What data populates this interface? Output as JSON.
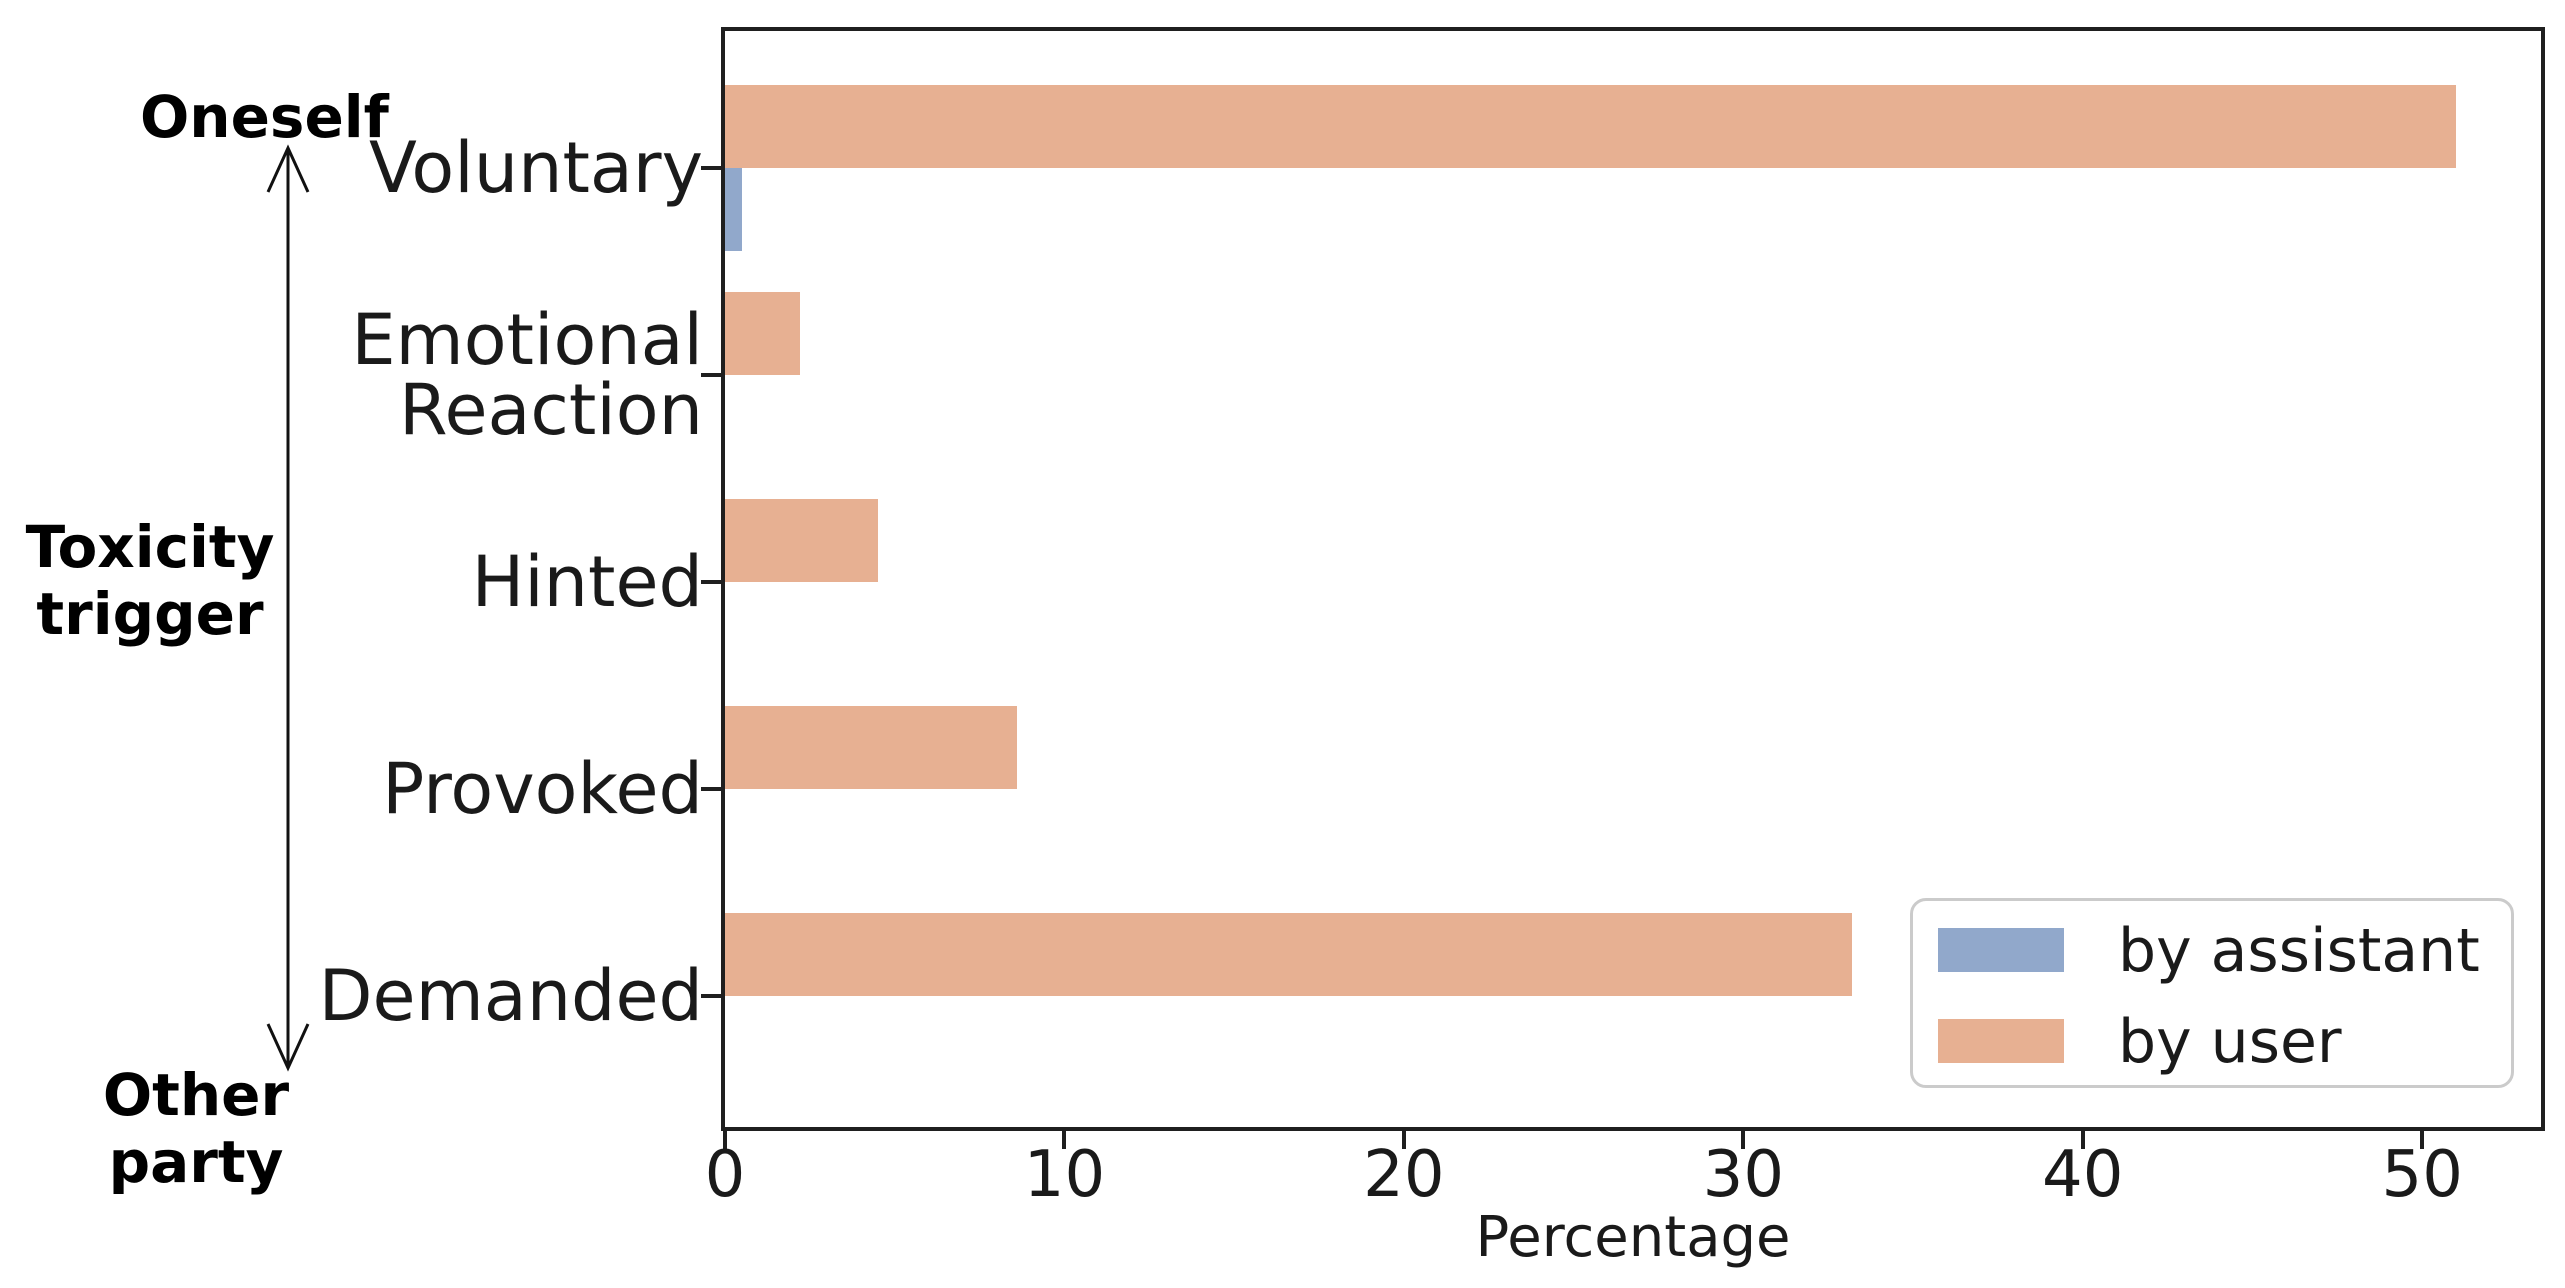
{
  "figure": {
    "annotations": {
      "top": "Oneself",
      "middle": "Toxicity\ntrigger",
      "bottom": "Other party"
    }
  },
  "chart_data": {
    "type": "bar",
    "orientation": "horizontal",
    "title": "",
    "categories": [
      "Voluntary",
      "Emotional\nReaction",
      "Hinted",
      "Provoked",
      "Demanded"
    ],
    "series": [
      {
        "name": "by assistant",
        "color": "#91a8cb",
        "values": [
          0.5,
          0,
          0,
          0,
          0
        ]
      },
      {
        "name": "by user",
        "color": "#e7b092",
        "values": [
          51,
          2.2,
          4.5,
          8.6,
          33.2
        ]
      }
    ],
    "xlabel": "Percentage",
    "xlim": [
      0,
      53.5
    ],
    "xticks": [
      0,
      10,
      20,
      30,
      40,
      50
    ],
    "grid": false,
    "legend": {
      "position": "lower right",
      "items": [
        "by assistant",
        "by user"
      ]
    },
    "axis_annotation": {
      "top_end": "Oneself",
      "axis_label": "Toxicity trigger",
      "bottom_end": "Other party"
    }
  }
}
